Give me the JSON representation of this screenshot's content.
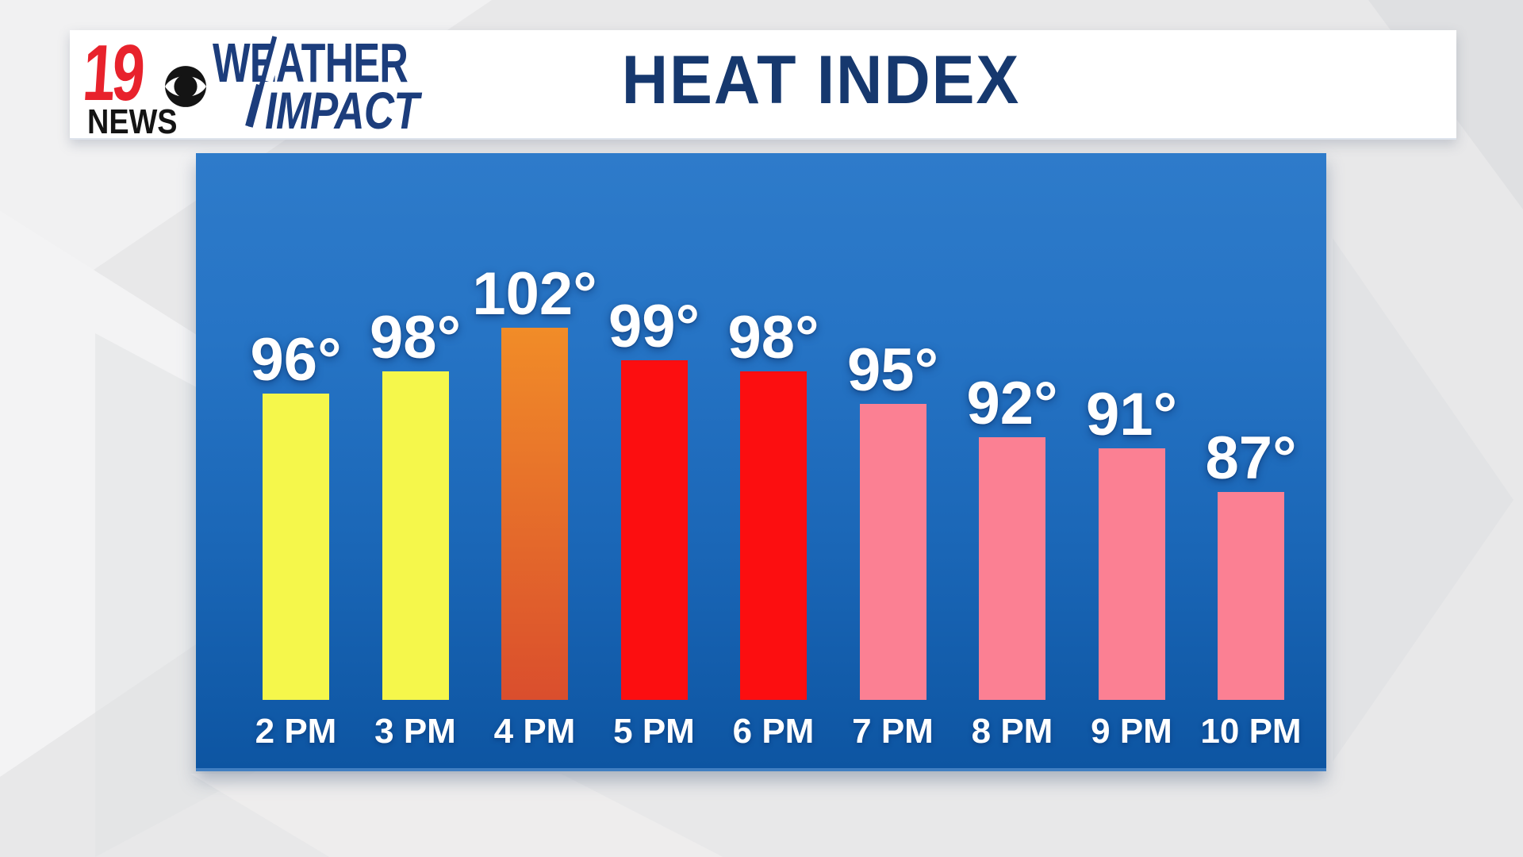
{
  "header": {
    "station": {
      "number": "19",
      "name": "NEWS"
    },
    "brand": {
      "line1": "WEATHER",
      "line2": "IMPACT"
    },
    "title": "HEAT INDEX"
  },
  "chart_data": {
    "type": "bar",
    "title": "HEAT INDEX",
    "categories": [
      "2 PM",
      "3 PM",
      "4 PM",
      "5 PM",
      "6 PM",
      "7 PM",
      "8 PM",
      "9 PM",
      "10 PM"
    ],
    "values": [
      96,
      98,
      102,
      99,
      98,
      95,
      92,
      91,
      87
    ],
    "value_labels": [
      "96°",
      "98°",
      "102°",
      "99°",
      "98°",
      "95°",
      "92°",
      "91°",
      "87°"
    ],
    "unit": "°F",
    "bar_colors": [
      "yellow",
      "yellow",
      "orange",
      "red",
      "red",
      "pink",
      "pink",
      "pink",
      "pink"
    ],
    "xlabel": "",
    "ylabel": "",
    "grid": false,
    "legend": false,
    "baseline_value_hint": 68
  },
  "colors": {
    "title_navy": "#16386e",
    "brand_navy": "#1c3d7c",
    "station_red": "#e8222c",
    "station_black": "#141414",
    "panel_blue_top": "#2e7bca",
    "panel_blue_bottom": "#0d55a2",
    "yellow": "#f5f74b",
    "orange_top": "#f18c28",
    "orange_bottom": "#da4e2d",
    "red": "#fc0e10",
    "pink": "#fb8093",
    "label_white": "#ffffff",
    "background_gray": "#e8e8e9"
  }
}
